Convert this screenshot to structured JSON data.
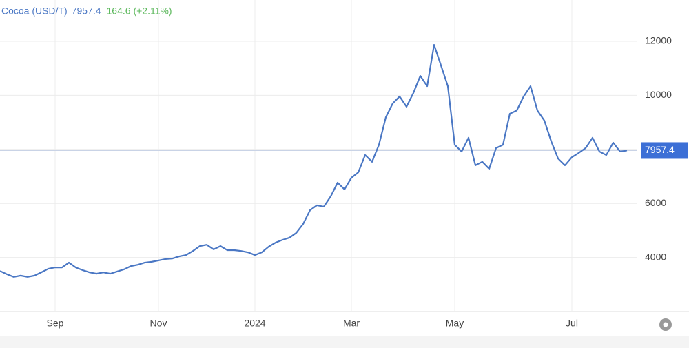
{
  "chart_data": {
    "type": "line",
    "title": "Cocoa (USD/T)",
    "last_value": 7957.4,
    "change": "164.6 (+2.11%)",
    "categories": [
      null,
      null,
      null,
      null,
      null,
      null,
      null,
      null,
      "Sep",
      null,
      null,
      null,
      null,
      null,
      null,
      null,
      null,
      null,
      null,
      null,
      null,
      null,
      null,
      "Nov",
      null,
      null,
      null,
      null,
      null,
      null,
      null,
      null,
      null,
      null,
      null,
      null,
      null,
      "2024",
      null,
      null,
      null,
      null,
      null,
      null,
      null,
      null,
      null,
      null,
      null,
      null,
      null,
      "Mar",
      null,
      null,
      null,
      null,
      null,
      null,
      null,
      null,
      null,
      null,
      null,
      null,
      null,
      null,
      "May",
      null,
      null,
      null,
      null,
      null,
      null,
      null,
      null,
      null,
      null,
      null,
      null,
      null,
      null,
      null,
      null,
      "Jul",
      null,
      null,
      null,
      null,
      null,
      null,
      null,
      null
    ],
    "series": [
      {
        "name": "Cocoa (USD/T)",
        "color": "#4a77c4",
        "values": [
          3500,
          3380,
          3280,
          3330,
          3280,
          3330,
          3450,
          3580,
          3630,
          3630,
          3810,
          3630,
          3530,
          3450,
          3400,
          3450,
          3400,
          3480,
          3560,
          3680,
          3730,
          3810,
          3840,
          3890,
          3940,
          3960,
          4040,
          4090,
          4240,
          4420,
          4470,
          4300,
          4420,
          4270,
          4270,
          4240,
          4190,
          4090,
          4190,
          4400,
          4550,
          4650,
          4730,
          4910,
          5240,
          5750,
          5930,
          5880,
          6260,
          6770,
          6520,
          6950,
          7150,
          7790,
          7540,
          8170,
          9190,
          9700,
          9960,
          9580,
          10090,
          10720,
          10340,
          11870,
          11110,
          10340,
          8170,
          7920,
          8430,
          7410,
          7540,
          7280,
          8050,
          8170,
          9320,
          9440,
          9960,
          10340,
          9440,
          9070,
          8300,
          7660,
          7410,
          7710,
          7870,
          8050,
          8430,
          7920,
          7790,
          8250,
          7920,
          7957.4
        ]
      }
    ],
    "ylim": [
      2000,
      13530
    ],
    "yticks": [
      4000,
      6000,
      8000,
      10000,
      12000
    ],
    "grid": true
  }
}
